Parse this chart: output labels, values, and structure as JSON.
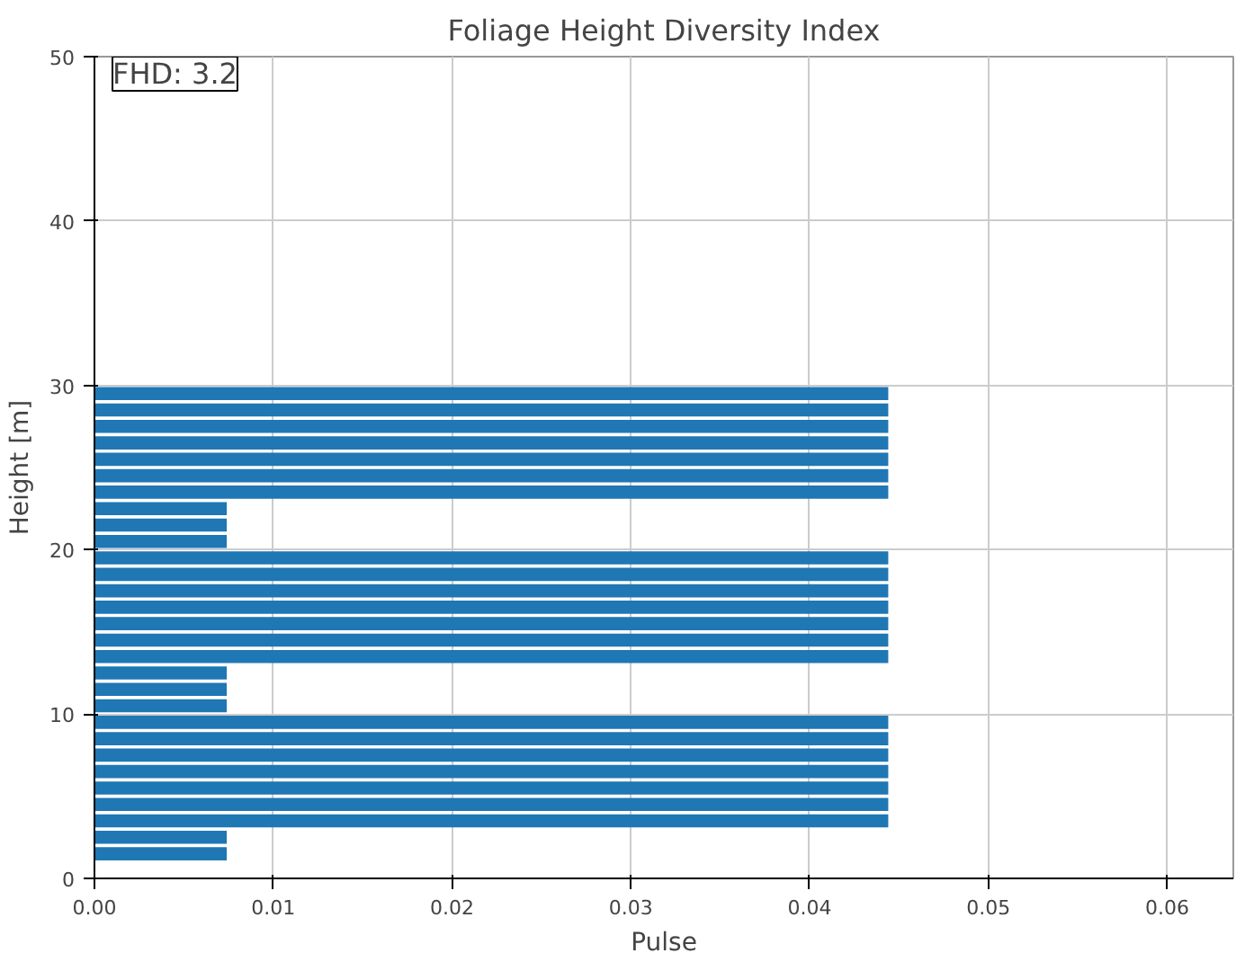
{
  "chart_data": {
    "type": "bar",
    "orientation": "horizontal",
    "title": "Foliage Height Diversity Index",
    "xlabel": "Pulse",
    "ylabel": "Height [m]",
    "x": [
      1.5,
      2.5,
      3.5,
      4.5,
      5.5,
      6.5,
      7.5,
      8.5,
      9.5,
      10.5,
      11.5,
      12.5,
      13.5,
      14.5,
      15.5,
      16.5,
      17.5,
      18.5,
      19.5,
      20.5,
      21.5,
      22.5,
      23.5,
      24.5,
      25.5,
      26.5,
      27.5,
      28.5,
      29.5
    ],
    "values": [
      0.0074,
      0.0074,
      0.0444,
      0.0444,
      0.0444,
      0.0444,
      0.0444,
      0.0444,
      0.0444,
      0.0074,
      0.0074,
      0.0074,
      0.0444,
      0.0444,
      0.0444,
      0.0444,
      0.0444,
      0.0444,
      0.0444,
      0.0074,
      0.0074,
      0.0074,
      0.0444,
      0.0444,
      0.0444,
      0.0444,
      0.0444,
      0.0444,
      0.0444
    ],
    "color": "#1f77b4",
    "xlim": [
      0,
      0.0637
    ],
    "xticks": [
      {
        "value": 0,
        "label": "0.00"
      },
      {
        "value": 0.01,
        "label": "0.01"
      },
      {
        "value": 0.02,
        "label": "0.02"
      },
      {
        "value": 0.03,
        "label": "0.03"
      },
      {
        "value": 0.04,
        "label": "0.04"
      },
      {
        "value": 0.05,
        "label": "0.05"
      },
      {
        "value": 0.06,
        "label": "0.06"
      }
    ],
    "ylim": [
      0,
      50
    ],
    "yticks": [
      0,
      10,
      20,
      30,
      40,
      50
    ],
    "grid": true,
    "annotations": [
      "FHD: 3.2"
    ]
  }
}
